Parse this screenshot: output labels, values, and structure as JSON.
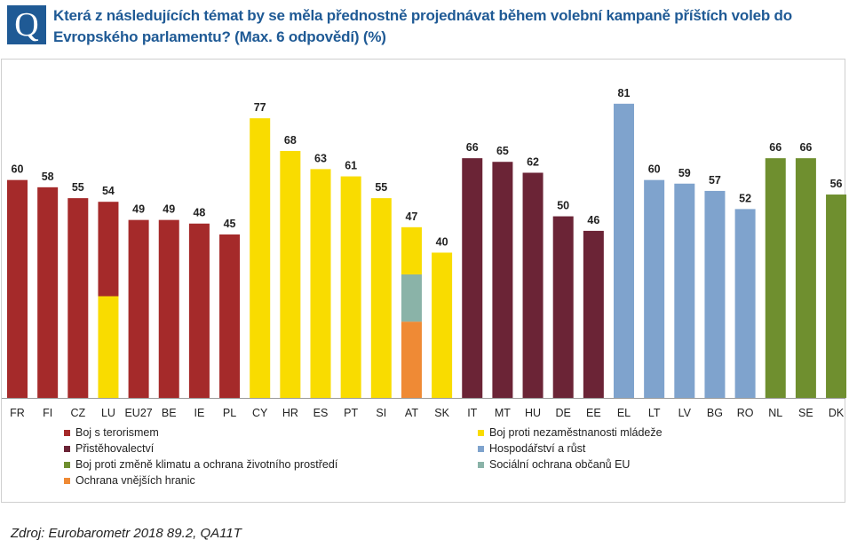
{
  "header": {
    "badge": "Q",
    "title": "Která z následujících témat by se měla přednostně projednávat během volební kampaně příštích voleb do Evropského parlamentu?  (Max. 6 odpovědí) (%)"
  },
  "colors": {
    "terrorism": "#a52a2a",
    "youth_unemployment": "#f9dc00",
    "immigration": "#6b2436",
    "economy": "#7fa3cd",
    "climate": "#6f8f2f",
    "social_protection": "#8ab3a8",
    "borders": "#ef8a35"
  },
  "chart_data": {
    "type": "bar",
    "title": "Která z následujících témat by se měla přednostně projednávat během volební kampaně příštích voleb do Evropského parlamentu?  (Max. 6 odpovědí) (%)",
    "xlabel": "",
    "ylabel": "%",
    "ylim": [
      0,
      90
    ],
    "grid": false,
    "legend_position": "bottom",
    "categories": [
      "FR",
      "FI",
      "CZ",
      "LU",
      "EU27",
      "BE",
      "IE",
      "PL",
      "CY",
      "HR",
      "ES",
      "PT",
      "SI",
      "AT",
      "SK",
      "IT",
      "MT",
      "HU",
      "DE",
      "EE",
      "EL",
      "LT",
      "LV",
      "BG",
      "RO",
      "NL",
      "SE",
      "DK"
    ],
    "values": [
      60,
      58,
      55,
      54,
      49,
      49,
      48,
      45,
      77,
      68,
      63,
      61,
      55,
      47,
      40,
      66,
      65,
      62,
      50,
      46,
      81,
      60,
      59,
      57,
      52,
      66,
      66,
      56
    ],
    "top_topic": [
      "terrorism",
      "terrorism",
      "terrorism",
      "terrorism",
      "terrorism",
      "terrorism",
      "terrorism",
      "terrorism",
      "youth_unemployment",
      "youth_unemployment",
      "youth_unemployment",
      "youth_unemployment",
      "youth_unemployment",
      "youth_unemployment",
      "youth_unemployment",
      "immigration",
      "immigration",
      "immigration",
      "immigration",
      "immigration",
      "economy",
      "economy",
      "economy",
      "economy",
      "economy",
      "climate",
      "climate",
      "climate"
    ],
    "tied_segments": {
      "LU": [
        {
          "topic": "youth_unemployment",
          "from": 0,
          "to": 28
        },
        {
          "topic": "terrorism",
          "from": 28,
          "to": 54
        }
      ],
      "AT": [
        {
          "topic": "borders",
          "from": 0,
          "to": 21
        },
        {
          "topic": "social_protection",
          "from": 21,
          "to": 34
        },
        {
          "topic": "youth_unemployment",
          "from": 34,
          "to": 47
        }
      ]
    },
    "legend": [
      {
        "key": "terrorism",
        "label": "Boj s terorismem"
      },
      {
        "key": "youth_unemployment",
        "label": "Boj proti nezaměstnanosti mládeže"
      },
      {
        "key": "immigration",
        "label": "Přistěhovalectví"
      },
      {
        "key": "economy",
        "label": "Hospodářství a růst"
      },
      {
        "key": "climate",
        "label": "Boj proti změně klimatu a ochrana životního prostředí"
      },
      {
        "key": "social_protection",
        "label": "Sociální ochrana občanů EU"
      },
      {
        "key": "borders",
        "label": "Ochrana vnějších hranic"
      }
    ]
  },
  "source": "Zdroj: Eurobarometr  2018 89.2, QA11T"
}
